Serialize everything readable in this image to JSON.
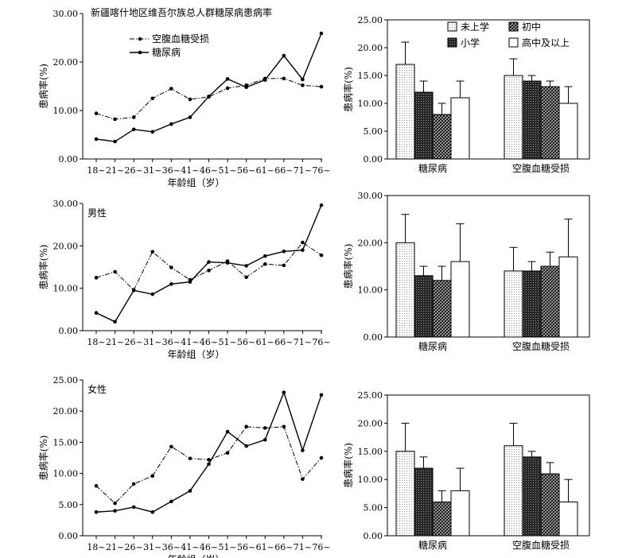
{
  "chart_data": [
    {
      "type": "line",
      "title": "新疆喀什地区维吾尔族总人群糖尿病患病率",
      "xlabel": "年龄组（岁）",
      "ylabel": "患病率(%)",
      "yticks": [
        "0.00",
        "10.00",
        "20.00",
        "30.00"
      ],
      "ylim": [
        0,
        30
      ],
      "categories": [
        "18~",
        "21~",
        "26~",
        "31~",
        "36~",
        "41~",
        "46~",
        "51~",
        "56~",
        "61~",
        "66~",
        "71~",
        "76~"
      ],
      "legend_position": "top-left",
      "series": [
        {
          "name": "空腹血糖受损",
          "style": "dash-dot",
          "values": [
            9.4,
            8.2,
            8.6,
            12.5,
            14.5,
            12.3,
            12.8,
            14.6,
            15.2,
            16.6,
            16.6,
            15.2,
            14.9
          ]
        },
        {
          "name": "糖尿病",
          "style": "solid",
          "values": [
            4.1,
            3.6,
            6.1,
            5.6,
            7.2,
            8.6,
            12.9,
            16.5,
            14.8,
            16.3,
            21.3,
            16.4,
            25.9
          ]
        }
      ]
    },
    {
      "type": "bar",
      "yticks": [
        "0.00",
        "5.00",
        "10.00",
        "15.00",
        "20.00",
        "25.00"
      ],
      "ylabel": "患病率(%)",
      "ylim": [
        0,
        25
      ],
      "categories": [
        "糖尿病",
        "空腹血糖受损"
      ],
      "legend_position": "top-right",
      "legend_order": [
        0,
        2,
        1,
        3
      ],
      "series": [
        {
          "name": "未上学",
          "pattern": "dots",
          "values": [
            17,
            15
          ],
          "errors": [
            4,
            3
          ]
        },
        {
          "name": "小学",
          "pattern": "dark",
          "values": [
            12,
            14
          ],
          "errors": [
            2,
            1
          ]
        },
        {
          "name": "初中",
          "pattern": "hatch",
          "values": [
            8,
            13
          ],
          "errors": [
            2,
            1
          ]
        },
        {
          "name": "高中及以上",
          "pattern": "white",
          "values": [
            11,
            10
          ],
          "errors": [
            3,
            3
          ]
        }
      ]
    },
    {
      "type": "line",
      "title": "男性",
      "xlabel": "年龄组（岁）",
      "ylabel": "患病率(%)",
      "yticks": [
        "0.00",
        "10.00",
        "20.00",
        "30.00"
      ],
      "ylim": [
        0,
        30
      ],
      "categories": [
        "18~",
        "21~",
        "26~",
        "31~",
        "36~",
        "41~",
        "46~",
        "51~",
        "56~",
        "61~",
        "66~",
        "71~",
        "76~"
      ],
      "series": [
        {
          "name": "空腹血糖受损",
          "style": "dash-dot",
          "values": [
            12.5,
            13.9,
            9.6,
            18.6,
            14.9,
            12.0,
            14.2,
            16.4,
            12.6,
            15.7,
            15.4,
            20.8,
            17.8
          ]
        },
        {
          "name": "糖尿病",
          "style": "solid",
          "values": [
            4.2,
            2.1,
            9.5,
            8.6,
            11.0,
            11.5,
            16.2,
            16.0,
            15.3,
            17.6,
            18.7,
            19.0,
            29.6
          ]
        }
      ]
    },
    {
      "type": "bar",
      "yticks": [
        "0.00",
        "10.00",
        "20.00",
        "30.00"
      ],
      "ylabel": "患病率(%)",
      "ylim": [
        0,
        30
      ],
      "categories": [
        "糖尿病",
        "空腹血糖受损"
      ],
      "series": [
        {
          "name": "未上学",
          "pattern": "dots",
          "values": [
            20,
            14
          ],
          "errors": [
            6,
            5
          ]
        },
        {
          "name": "小学",
          "pattern": "dark",
          "values": [
            13,
            14
          ],
          "errors": [
            2,
            2
          ]
        },
        {
          "name": "初中",
          "pattern": "hatch",
          "values": [
            12,
            15
          ],
          "errors": [
            3,
            3
          ]
        },
        {
          "name": "高中及以上",
          "pattern": "white",
          "values": [
            16,
            17
          ],
          "errors": [
            8,
            8
          ]
        }
      ]
    },
    {
      "type": "line",
      "title": "女性",
      "xlabel": "年龄组（岁）",
      "ylabel": "患病率(%)",
      "yticks": [
        "0.00",
        "5.00",
        "10.00",
        "15.00",
        "20.00",
        "25.00"
      ],
      "ylim": [
        0,
        25
      ],
      "categories": [
        "18~",
        "21~",
        "26~",
        "31~",
        "36~",
        "41~",
        "46~",
        "51~",
        "56~",
        "61~",
        "66~",
        "71~",
        "76~"
      ],
      "series": [
        {
          "name": "空腹血糖受损",
          "style": "dash-dot",
          "values": [
            8.0,
            5.2,
            8.3,
            9.6,
            14.3,
            12.4,
            12.2,
            13.3,
            17.5,
            17.3,
            17.5,
            9.1,
            12.5
          ]
        },
        {
          "name": "糖尿病",
          "style": "solid",
          "values": [
            3.8,
            4.0,
            4.6,
            3.8,
            5.5,
            7.2,
            11.5,
            16.7,
            14.4,
            15.4,
            23.0,
            13.7,
            22.6
          ]
        }
      ]
    },
    {
      "type": "bar",
      "yticks": [
        "0.00",
        "5.00",
        "10.00",
        "15.00",
        "20.00",
        "25.00"
      ],
      "ylabel": "患病率(%)",
      "ylim": [
        0,
        25
      ],
      "categories": [
        "糖尿病",
        "空腹血糖受损"
      ],
      "series": [
        {
          "name": "未上学",
          "pattern": "dots",
          "values": [
            15,
            16
          ],
          "errors": [
            5,
            4
          ]
        },
        {
          "name": "小学",
          "pattern": "dark",
          "values": [
            12,
            14
          ],
          "errors": [
            2,
            1
          ]
        },
        {
          "name": "初中",
          "pattern": "hatch",
          "values": [
            6,
            11
          ],
          "errors": [
            2,
            2
          ]
        },
        {
          "name": "高中及以上",
          "pattern": "white",
          "values": [
            8,
            6
          ],
          "errors": [
            4,
            4
          ]
        }
      ]
    }
  ]
}
